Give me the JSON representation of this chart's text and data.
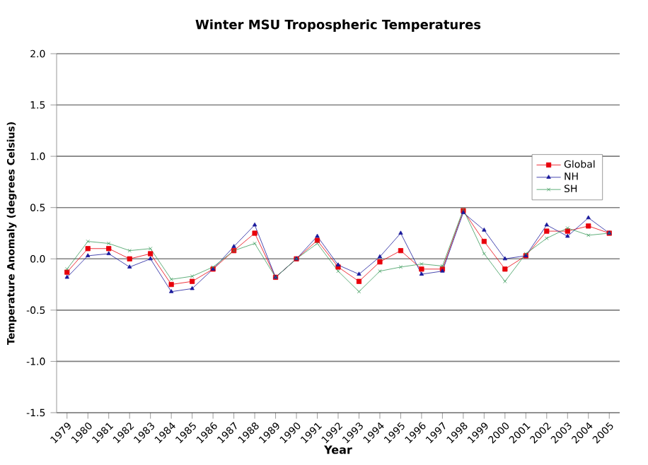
{
  "chart_data": {
    "type": "line",
    "title": "Winter MSU Tropospheric Temperatures",
    "xlabel": "Year",
    "ylabel": "Temperature Anomaly (degrees Celsius)",
    "categories": [
      "1979",
      "1980",
      "1981",
      "1982",
      "1983",
      "1984",
      "1985",
      "1986",
      "1987",
      "1988",
      "1989",
      "1990",
      "1991",
      "1992",
      "1993",
      "1994",
      "1995",
      "1996",
      "1997",
      "1998",
      "1999",
      "2000",
      "2001",
      "2002",
      "2003",
      "2004",
      "2005"
    ],
    "series": [
      {
        "name": "Global",
        "color": "#e8000b",
        "marker": "square",
        "values": [
          -0.13,
          0.1,
          0.1,
          0.0,
          0.05,
          -0.25,
          -0.22,
          -0.1,
          0.08,
          0.25,
          -0.18,
          0.0,
          0.18,
          -0.08,
          -0.22,
          -0.03,
          0.08,
          -0.1,
          -0.1,
          0.47,
          0.17,
          -0.1,
          0.03,
          0.27,
          0.27,
          0.32,
          0.25
        ]
      },
      {
        "name": "NH",
        "color": "#1a1a9c",
        "marker": "triangle",
        "values": [
          -0.18,
          0.03,
          0.05,
          -0.08,
          0.0,
          -0.32,
          -0.29,
          -0.1,
          0.12,
          0.33,
          -0.18,
          0.0,
          0.22,
          -0.06,
          -0.15,
          0.02,
          0.25,
          -0.15,
          -0.12,
          0.45,
          0.28,
          0.0,
          0.03,
          0.33,
          0.22,
          0.4,
          0.25
        ]
      },
      {
        "name": "SH",
        "color": "#3a9a5a",
        "marker": "cross",
        "values": [
          -0.1,
          0.17,
          0.15,
          0.08,
          0.1,
          -0.2,
          -0.17,
          -0.08,
          0.08,
          0.15,
          -0.18,
          0.0,
          0.15,
          -0.12,
          -0.32,
          -0.12,
          -0.08,
          -0.05,
          -0.07,
          0.48,
          0.05,
          -0.22,
          0.05,
          0.2,
          0.3,
          0.23,
          0.25
        ]
      }
    ],
    "ylim": [
      -1.5,
      2.0
    ],
    "yticks": [
      {
        "value": -1.5,
        "label": "-1.5"
      },
      {
        "value": -1.0,
        "label": "-1.0"
      },
      {
        "value": -0.5,
        "label": "-0.5"
      },
      {
        "value": 0,
        "label": "0.0"
      },
      {
        "value": 0.5,
        "label": "0.5"
      },
      {
        "value": 1.0,
        "label": "1.0"
      },
      {
        "value": 1.5,
        "label": "1.5"
      },
      {
        "value": 2.0,
        "label": "2.0"
      }
    ],
    "grid": "y",
    "legend": "right"
  }
}
